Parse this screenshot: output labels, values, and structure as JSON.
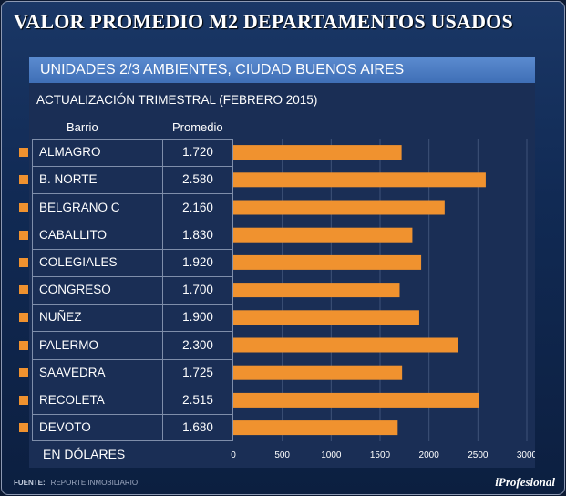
{
  "header": {
    "title": "VALOR PROMEDIO M2 DEPARTAMENTOS USADOS"
  },
  "footer": {
    "source_label": "FUENTE:",
    "source_value": "REPORTE INMOBILIARIO",
    "brand": "iProfesional"
  },
  "colors": {
    "bar": "#f0922f",
    "bullet": "#f0922f",
    "subtitle_bar": "#4a7cc2"
  },
  "chart_data": {
    "type": "bar",
    "orientation": "horizontal",
    "title": "UNIDADES 2/3 AMBIENTES, CIUDAD BUENOS AIRES",
    "subtitle": "ACTUALIZACIÓN TRIMESTRAL (FEBRERO 2015)",
    "column_headers": [
      "Barrio",
      "Promedio"
    ],
    "units_label": "EN DÓLARES",
    "categories": [
      "ALMAGRO",
      "B. NORTE",
      "BELGRANO C",
      "CABALLITO",
      "COLEGIALES",
      "CONGRESO",
      "NUÑEZ",
      "PALERMO",
      "SAAVEDRA",
      "RECOLETA",
      "DEVOTO"
    ],
    "value_labels": [
      "1.720",
      "2.580",
      "2.160",
      "1.830",
      "1.920",
      "1.700",
      "1.900",
      "2.300",
      "1.725",
      "2.515",
      "1.680"
    ],
    "values": [
      1720,
      2580,
      2160,
      1830,
      1920,
      1700,
      1900,
      2300,
      1725,
      2515,
      1680
    ],
    "xlim": [
      0,
      3000
    ],
    "xticks": [
      0,
      500,
      1000,
      1500,
      2000,
      2500,
      3000
    ],
    "xtick_labels": [
      "0",
      "500",
      "1000",
      "1500",
      "2000",
      "2500",
      "3000"
    ],
    "grid": true
  }
}
